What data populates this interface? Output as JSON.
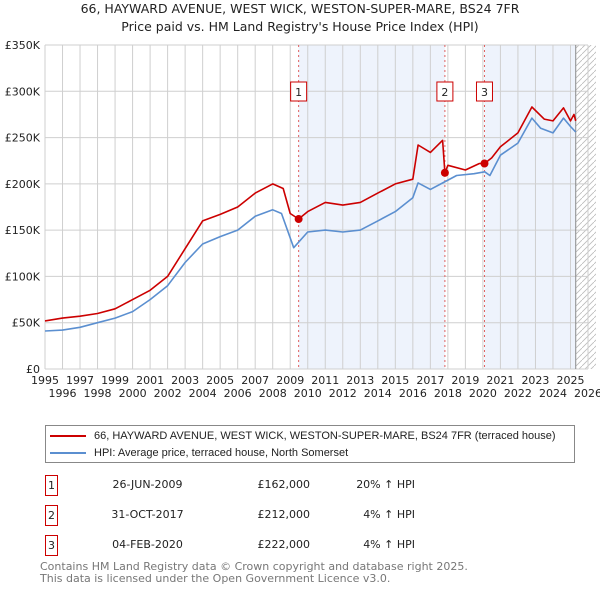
{
  "title_line1": "66, HAYWARD AVENUE, WEST WICK, WESTON-SUPER-MARE, BS24 7FR",
  "title_line2": "Price paid vs. HM Land Registry's House Price Index (HPI)",
  "chart_data": {
    "type": "line",
    "xlim": [
      1995,
      2026
    ],
    "ylim": [
      0,
      350000
    ],
    "y_ticks": [
      0,
      50000,
      100000,
      150000,
      200000,
      250000,
      300000,
      350000
    ],
    "y_tick_labels": [
      "£0",
      "£50K",
      "£100K",
      "£150K",
      "£200K",
      "£250K",
      "£300K",
      "£350K"
    ],
    "x_ticks": [
      "1995",
      "1996",
      "1997",
      "1998",
      "1999",
      "2000",
      "2001",
      "2002",
      "2003",
      "2004",
      "2005",
      "2006",
      "2007",
      "2008",
      "2009",
      "2010",
      "2011",
      "2012",
      "2013",
      "2014",
      "2015",
      "2016",
      "2017",
      "2018",
      "2019",
      "2020",
      "2021",
      "2022",
      "2023",
      "2024",
      "2025",
      "2026"
    ],
    "grid": true,
    "shaded_ranges": [
      [
        2009.48,
        2017.83
      ],
      [
        2020.09,
        2025.3
      ]
    ],
    "hatched_range": [
      2025.3,
      2026
    ],
    "series": [
      {
        "name": "66, HAYWARD AVENUE, WEST WICK, WESTON-SUPER-MARE, BS24 7FR (terraced house)",
        "color": "#cc0000",
        "x": [
          1995,
          1996,
          1997,
          1998,
          1999,
          2000,
          2001,
          2002,
          2003,
          2004,
          2005,
          2006,
          2007,
          2008,
          2008.6,
          2009,
          2009.48,
          2010,
          2011,
          2012,
          2013,
          2014,
          2015,
          2016,
          2016.3,
          2017,
          2017.7,
          2017.83,
          2018,
          2019,
          2019.8,
          2020.09,
          2020.5,
          2021,
          2022,
          2022.8,
          2023.5,
          2024,
          2024.6,
          2025,
          2025.2,
          2025.3
        ],
        "y": [
          52000,
          55000,
          57000,
          60000,
          65000,
          75000,
          85000,
          100000,
          130000,
          160000,
          167000,
          175000,
          190000,
          200000,
          195000,
          168000,
          162000,
          170000,
          180000,
          177000,
          180000,
          190000,
          200000,
          205000,
          242000,
          234000,
          247000,
          212000,
          220000,
          215000,
          222000,
          222000,
          228000,
          240000,
          255000,
          283000,
          270000,
          268000,
          282000,
          268000,
          275000,
          268000
        ]
      },
      {
        "name": "HPI: Average price, terraced house, North Somerset",
        "color": "#5b8fd0",
        "x": [
          1995,
          1996,
          1997,
          1998,
          1999,
          2000,
          2001,
          2002,
          2003,
          2004,
          2005,
          2006,
          2007,
          2008,
          2008.5,
          2009.2,
          2010,
          2011,
          2012,
          2013,
          2014,
          2015,
          2016,
          2016.3,
          2017,
          2017.8,
          2018.5,
          2019.5,
          2020.1,
          2020.4,
          2021,
          2022,
          2022.8,
          2023.3,
          2024,
          2024.6,
          2025,
          2025.3
        ],
        "y": [
          41000,
          42000,
          45000,
          50000,
          55000,
          62000,
          75000,
          90000,
          115000,
          135000,
          143000,
          150000,
          165000,
          172000,
          168000,
          131000,
          148000,
          150000,
          148000,
          150000,
          160000,
          170000,
          185000,
          201000,
          194000,
          202000,
          209000,
          211000,
          213000,
          209000,
          231000,
          244000,
          271000,
          260000,
          255000,
          271000,
          262000,
          256000
        ]
      }
    ],
    "sales": [
      {
        "label": "1",
        "x": 2009.48,
        "y": 162000
      },
      {
        "label": "2",
        "x": 2017.83,
        "y": 212000
      },
      {
        "label": "3",
        "x": 2020.09,
        "y": 222000
      }
    ]
  },
  "legend": [
    {
      "label": "66, HAYWARD AVENUE, WEST WICK, WESTON-SUPER-MARE, BS24 7FR (terraced house)",
      "color": "#cc0000"
    },
    {
      "label": "HPI: Average price, terraced house, North Somerset",
      "color": "#5b8fd0"
    }
  ],
  "transactions": [
    {
      "num": "1",
      "date": "26-JUN-2009",
      "price": "£162,000",
      "hpi": "20% ↑ HPI"
    },
    {
      "num": "2",
      "date": "31-OCT-2017",
      "price": "£212,000",
      "hpi": "4% ↑ HPI"
    },
    {
      "num": "3",
      "date": "04-FEB-2020",
      "price": "£222,000",
      "hpi": "4% ↑ HPI"
    }
  ],
  "footer_line1": "Contains HM Land Registry data © Crown copyright and database right 2025.",
  "footer_line2": "This data is licensed under the Open Government Licence v3.0."
}
